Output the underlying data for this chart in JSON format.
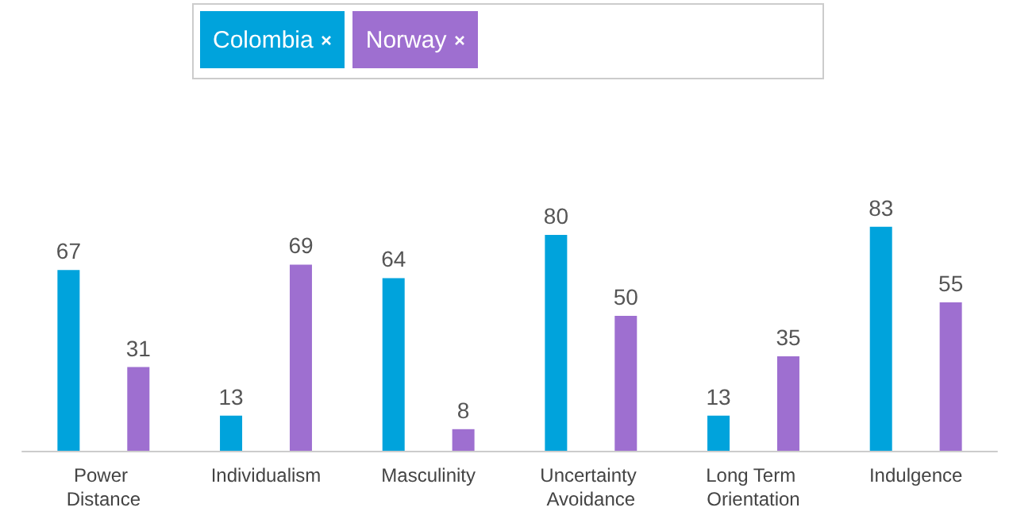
{
  "chart_data": {
    "type": "bar",
    "categories": [
      "Power Distance",
      "Individualism",
      "Masculinity",
      "Uncertainty Avoidance",
      "Long Term Orientation",
      "Indulgence"
    ],
    "series": [
      {
        "name": "Colombia",
        "color": "#00a3dc",
        "values": [
          67,
          13,
          64,
          80,
          13,
          83
        ]
      },
      {
        "name": "Norway",
        "color": "#9e6fd0",
        "values": [
          31,
          69,
          8,
          50,
          35,
          55
        ]
      }
    ],
    "data_labels": true,
    "legend": "top",
    "grid": false
  }
}
